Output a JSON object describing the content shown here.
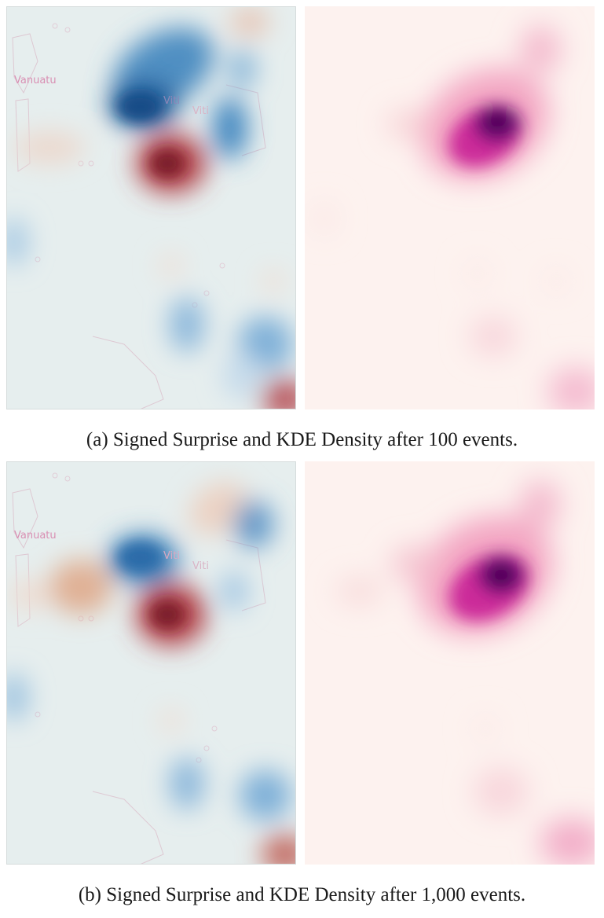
{
  "figure": {
    "rows": [
      {
        "caption": "(a) Signed Surprise and KDE Density after 100 events.",
        "surprise_map": {
          "labels": [
            {
              "text": "Vanuatu",
              "color": "#d98fb3"
            },
            {
              "text": "Viti",
              "color": "#8d86b8"
            },
            {
              "text": "Viti",
              "color": "#d9b4c6"
            }
          ]
        }
      },
      {
        "caption": "(b) Signed Surprise and KDE Density after 1,000 events.",
        "surprise_map": {
          "labels": [
            {
              "text": "Vanuatu",
              "color": "#d98fb3"
            },
            {
              "text": "Viti",
              "color": "#d9a8c2"
            },
            {
              "text": "Viti",
              "color": "#d9b4c6"
            }
          ]
        }
      }
    ],
    "colors": {
      "surprise_background": "#e6eeee",
      "surprise_negative": "#2f6fa8",
      "surprise_positive": "#9c2f3a",
      "density_background": "#fdf2ef",
      "density_peak": "#4d004b"
    }
  }
}
